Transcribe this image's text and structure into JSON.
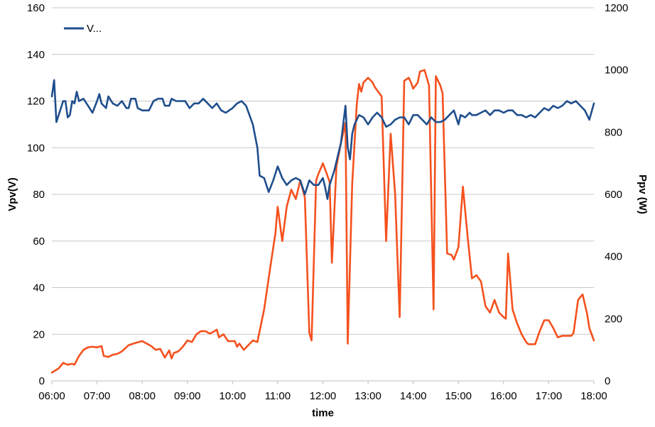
{
  "chart_data": {
    "type": "line",
    "xlabel": "time",
    "ylabel_left": "Vpv(V)",
    "ylabel_right": "Ppv (W)",
    "x_ticks": [
      "06:00",
      "07:00",
      "08:00",
      "09:00",
      "10:00",
      "11:00",
      "12:00",
      "13:00",
      "14:00",
      "15:00",
      "16:00",
      "17:00",
      "18:00"
    ],
    "y_left": {
      "min": 0,
      "max": 160,
      "step": 20,
      "ticks": [
        "0",
        "20",
        "40",
        "60",
        "80",
        "100",
        "120",
        "140",
        "160"
      ]
    },
    "y_right": {
      "min": 0,
      "max": 1200,
      "step": 200,
      "ticks": [
        "0",
        "200",
        "400",
        "600",
        "800",
        "1000",
        "1200"
      ]
    },
    "grid": "horizontal",
    "legend": {
      "position": "top-left",
      "entries": [
        {
          "label": "V...",
          "color": "#1f4e8c"
        }
      ]
    },
    "series": [
      {
        "name": "V...",
        "axis": "left",
        "color": "#1f4e8c",
        "points": [
          [
            "06:00",
            122
          ],
          [
            "06:03",
            129
          ],
          [
            "06:06",
            111
          ],
          [
            "06:15",
            120
          ],
          [
            "06:18",
            120
          ],
          [
            "06:21",
            113
          ],
          [
            "06:24",
            114
          ],
          [
            "06:27",
            120
          ],
          [
            "06:30",
            119
          ],
          [
            "06:33",
            124
          ],
          [
            "06:36",
            120
          ],
          [
            "06:42",
            121
          ],
          [
            "06:48",
            118
          ],
          [
            "06:54",
            115
          ],
          [
            "07:00",
            120
          ],
          [
            "07:03",
            123
          ],
          [
            "07:06",
            119
          ],
          [
            "07:12",
            117
          ],
          [
            "07:15",
            122
          ],
          [
            "07:21",
            119
          ],
          [
            "07:27",
            118
          ],
          [
            "07:33",
            120
          ],
          [
            "07:39",
            117
          ],
          [
            "07:42",
            117
          ],
          [
            "07:45",
            121
          ],
          [
            "07:51",
            121
          ],
          [
            "07:54",
            117
          ],
          [
            "08:00",
            116
          ],
          [
            "08:03",
            116
          ],
          [
            "08:09",
            116
          ],
          [
            "08:15",
            120
          ],
          [
            "08:21",
            121
          ],
          [
            "08:27",
            121
          ],
          [
            "08:30",
            118
          ],
          [
            "08:36",
            118
          ],
          [
            "08:39",
            121
          ],
          [
            "08:45",
            120
          ],
          [
            "08:51",
            120
          ],
          [
            "08:57",
            120
          ],
          [
            "09:03",
            117
          ],
          [
            "09:09",
            119
          ],
          [
            "09:15",
            119
          ],
          [
            "09:21",
            121
          ],
          [
            "09:27",
            119
          ],
          [
            "09:33",
            117
          ],
          [
            "09:39",
            119
          ],
          [
            "09:45",
            116
          ],
          [
            "09:51",
            115
          ],
          [
            "10:00",
            117
          ],
          [
            "10:06",
            119
          ],
          [
            "10:12",
            120
          ],
          [
            "10:18",
            118
          ],
          [
            "10:27",
            110
          ],
          [
            "10:33",
            100
          ],
          [
            "10:36",
            88
          ],
          [
            "10:42",
            87
          ],
          [
            "10:48",
            81
          ],
          [
            "10:54",
            86
          ],
          [
            "11:00",
            92
          ],
          [
            "11:06",
            87
          ],
          [
            "11:12",
            84
          ],
          [
            "11:18",
            86
          ],
          [
            "11:24",
            87
          ],
          [
            "11:30",
            86
          ],
          [
            "11:36",
            80
          ],
          [
            "11:42",
            86
          ],
          [
            "11:48",
            84
          ],
          [
            "11:54",
            84
          ],
          [
            "12:00",
            87
          ],
          [
            "12:03",
            83
          ],
          [
            "12:06",
            78
          ],
          [
            "12:09",
            84
          ],
          [
            "12:15",
            90
          ],
          [
            "12:24",
            102
          ],
          [
            "12:30",
            118
          ],
          [
            "12:33",
            100
          ],
          [
            "12:36",
            95
          ],
          [
            "12:39",
            106
          ],
          [
            "12:42",
            110
          ],
          [
            "12:48",
            114
          ],
          [
            "12:54",
            113
          ],
          [
            "13:00",
            110
          ],
          [
            "13:06",
            113
          ],
          [
            "13:12",
            115
          ],
          [
            "13:18",
            113
          ],
          [
            "13:24",
            109
          ],
          [
            "13:30",
            110
          ],
          [
            "13:36",
            112
          ],
          [
            "13:42",
            113
          ],
          [
            "13:48",
            113
          ],
          [
            "13:54",
            110
          ],
          [
            "14:00",
            114
          ],
          [
            "14:06",
            114
          ],
          [
            "14:12",
            112
          ],
          [
            "14:18",
            110
          ],
          [
            "14:24",
            113
          ],
          [
            "14:30",
            111
          ],
          [
            "14:36",
            111
          ],
          [
            "14:42",
            112
          ],
          [
            "14:48",
            114
          ],
          [
            "14:54",
            116
          ],
          [
            "15:00",
            110
          ],
          [
            "15:03",
            114
          ],
          [
            "15:09",
            113
          ],
          [
            "15:15",
            115
          ],
          [
            "15:18",
            114
          ],
          [
            "15:24",
            114
          ],
          [
            "15:30",
            115
          ],
          [
            "15:36",
            116
          ],
          [
            "15:42",
            114
          ],
          [
            "15:48",
            116
          ],
          [
            "15:54",
            116
          ],
          [
            "16:00",
            115
          ],
          [
            "16:06",
            116
          ],
          [
            "16:12",
            116
          ],
          [
            "16:18",
            114
          ],
          [
            "16:24",
            114
          ],
          [
            "16:30",
            113
          ],
          [
            "16:36",
            114
          ],
          [
            "16:42",
            113
          ],
          [
            "16:48",
            115
          ],
          [
            "16:54",
            117
          ],
          [
            "17:00",
            116
          ],
          [
            "17:06",
            118
          ],
          [
            "17:12",
            117
          ],
          [
            "17:18",
            118
          ],
          [
            "17:24",
            120
          ],
          [
            "17:30",
            119
          ],
          [
            "17:36",
            120
          ],
          [
            "17:42",
            118
          ],
          [
            "17:48",
            116
          ],
          [
            "17:54",
            112
          ],
          [
            "18:00",
            119
          ]
        ]
      },
      {
        "name": "",
        "axis": "right",
        "color": "#f4511e",
        "points": [
          [
            "06:00",
            27
          ],
          [
            "06:09",
            40
          ],
          [
            "06:15",
            58
          ],
          [
            "06:21",
            52
          ],
          [
            "06:27",
            55
          ],
          [
            "06:30",
            52
          ],
          [
            "06:36",
            80
          ],
          [
            "06:42",
            100
          ],
          [
            "06:48",
            108
          ],
          [
            "06:54",
            110
          ],
          [
            "07:00",
            108
          ],
          [
            "07:06",
            112
          ],
          [
            "07:09",
            80
          ],
          [
            "07:15",
            77
          ],
          [
            "07:21",
            84
          ],
          [
            "07:27",
            87
          ],
          [
            "07:33",
            95
          ],
          [
            "07:42",
            115
          ],
          [
            "07:51",
            122
          ],
          [
            "08:00",
            128
          ],
          [
            "08:06",
            120
          ],
          [
            "08:12",
            112
          ],
          [
            "08:18",
            100
          ],
          [
            "08:24",
            103
          ],
          [
            "08:30",
            75
          ],
          [
            "08:36",
            98
          ],
          [
            "08:39",
            72
          ],
          [
            "08:42",
            90
          ],
          [
            "08:48",
            95
          ],
          [
            "08:54",
            110
          ],
          [
            "09:00",
            130
          ],
          [
            "09:06",
            125
          ],
          [
            "09:12",
            150
          ],
          [
            "09:18",
            160
          ],
          [
            "09:24",
            160
          ],
          [
            "09:30",
            152
          ],
          [
            "09:36",
            160
          ],
          [
            "09:39",
            165
          ],
          [
            "09:42",
            140
          ],
          [
            "09:48",
            150
          ],
          [
            "09:54",
            128
          ],
          [
            "10:00",
            128
          ],
          [
            "10:03",
            128
          ],
          [
            "10:06",
            110
          ],
          [
            "10:09",
            120
          ],
          [
            "10:15",
            100
          ],
          [
            "10:21",
            115
          ],
          [
            "10:27",
            130
          ],
          [
            "10:33",
            125
          ],
          [
            "10:42",
            230
          ],
          [
            "10:51",
            380
          ],
          [
            "10:57",
            475
          ],
          [
            "11:00",
            560
          ],
          [
            "11:06",
            450
          ],
          [
            "11:12",
            560
          ],
          [
            "11:18",
            615
          ],
          [
            "11:24",
            585
          ],
          [
            "11:30",
            645
          ],
          [
            "11:36",
            590
          ],
          [
            "11:42",
            155
          ],
          [
            "11:45",
            130
          ],
          [
            "11:51",
            645
          ],
          [
            "11:54",
            665
          ],
          [
            "12:00",
            700
          ],
          [
            "12:06",
            660
          ],
          [
            "12:09",
            640
          ],
          [
            "12:12",
            380
          ],
          [
            "12:18",
            690
          ],
          [
            "12:24",
            765
          ],
          [
            "12:30",
            830
          ],
          [
            "12:33",
            120
          ],
          [
            "12:39",
            635
          ],
          [
            "12:45",
            890
          ],
          [
            "12:48",
            955
          ],
          [
            "12:51",
            930
          ],
          [
            "12:54",
            960
          ],
          [
            "13:00",
            975
          ],
          [
            "13:06",
            960
          ],
          [
            "13:09",
            945
          ],
          [
            "13:15",
            925
          ],
          [
            "13:18",
            915
          ],
          [
            "13:24",
            450
          ],
          [
            "13:30",
            795
          ],
          [
            "13:36",
            600
          ],
          [
            "13:42",
            205
          ],
          [
            "13:45",
            575
          ],
          [
            "13:48",
            965
          ],
          [
            "13:54",
            975
          ],
          [
            "13:57",
            960
          ],
          [
            "14:00",
            940
          ],
          [
            "14:06",
            960
          ],
          [
            "14:09",
            995
          ],
          [
            "14:15",
            1000
          ],
          [
            "14:21",
            950
          ],
          [
            "14:27",
            230
          ],
          [
            "14:30",
            980
          ],
          [
            "14:36",
            950
          ],
          [
            "14:39",
            925
          ],
          [
            "14:45",
            410
          ],
          [
            "14:51",
            405
          ],
          [
            "14:54",
            390
          ],
          [
            "15:00",
            430
          ],
          [
            "15:06",
            625
          ],
          [
            "15:12",
            470
          ],
          [
            "15:18",
            330
          ],
          [
            "15:24",
            340
          ],
          [
            "15:30",
            320
          ],
          [
            "15:36",
            240
          ],
          [
            "15:42",
            220
          ],
          [
            "15:48",
            260
          ],
          [
            "15:54",
            220
          ],
          [
            "16:00",
            205
          ],
          [
            "16:03",
            200
          ],
          [
            "16:06",
            410
          ],
          [
            "16:12",
            230
          ],
          [
            "16:18",
            185
          ],
          [
            "16:24",
            150
          ],
          [
            "16:30",
            125
          ],
          [
            "16:33",
            118
          ],
          [
            "16:42",
            118
          ],
          [
            "16:48",
            160
          ],
          [
            "16:54",
            195
          ],
          [
            "17:00",
            195
          ],
          [
            "17:06",
            170
          ],
          [
            "17:12",
            140
          ],
          [
            "17:18",
            145
          ],
          [
            "17:24",
            145
          ],
          [
            "17:30",
            145
          ],
          [
            "17:33",
            155
          ],
          [
            "17:39",
            260
          ],
          [
            "17:45",
            278
          ],
          [
            "17:51",
            215
          ],
          [
            "17:54",
            170
          ],
          [
            "18:00",
            130
          ]
        ]
      }
    ]
  }
}
